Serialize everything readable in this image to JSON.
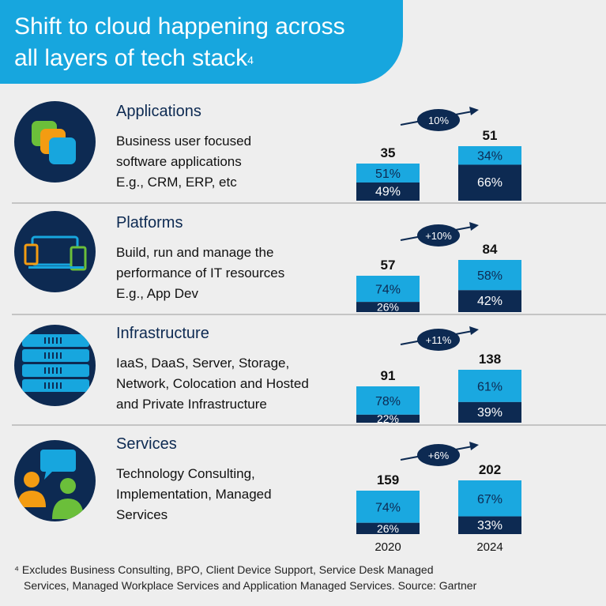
{
  "header": {
    "title_line1": "Shift to cloud happening across",
    "title_line2": "all layers of tech stack",
    "title_sup": "4"
  },
  "colors": {
    "accent": "#17a6de",
    "navy": "#0d2a52",
    "light_bar": "#1aa8e0",
    "dark_bar": "#0d2a52"
  },
  "categories": [
    {
      "title": "Applications",
      "desc": [
        "Business user focused",
        "software applications",
        "E.g., CRM, ERP, etc"
      ],
      "icon": "app-windows-icon"
    },
    {
      "title": "Platforms",
      "desc": [
        "Build, run and manage the",
        "performance of IT resources",
        "E.g., App Dev"
      ],
      "icon": "devices-icon"
    },
    {
      "title": "Infrastructure",
      "desc": [
        "IaaS, DaaS, Server, Storage,",
        "Network, Colocation and Hosted",
        "and Private Infrastructure"
      ],
      "icon": "server-rack-icon"
    },
    {
      "title": "Services",
      "desc": [
        "Technology Consulting,",
        "Implementation, Managed",
        "Services"
      ],
      "icon": "people-chat-icon"
    }
  ],
  "chart_data": {
    "type": "bar",
    "categories": [
      "2020",
      "2024"
    ],
    "groups": [
      {
        "name": "Applications",
        "totals": [
          35,
          51
        ],
        "growth": "10%",
        "light_pct": [
          "51%",
          "34%"
        ],
        "dark_pct": [
          "49%",
          "66%"
        ]
      },
      {
        "name": "Platforms",
        "totals": [
          57,
          84
        ],
        "growth": "+10%",
        "light_pct": [
          "74%",
          "58%"
        ],
        "dark_pct": [
          "26%",
          "42%"
        ]
      },
      {
        "name": "Infrastructure",
        "totals": [
          91,
          138
        ],
        "growth": "+11%",
        "light_pct": [
          "78%",
          "61%"
        ],
        "dark_pct": [
          "22%",
          "39%"
        ]
      },
      {
        "name": "Services",
        "totals": [
          159,
          202
        ],
        "growth": "+6%",
        "light_pct": [
          "74%",
          "67%"
        ],
        "dark_pct": [
          "26%",
          "33%"
        ]
      }
    ]
  },
  "footnote": {
    "line1": "⁴ Excludes Business Consulting, BPO, Client Device Support, Service Desk Managed",
    "line2": "Services, Managed Workplace Services and Application Managed Services. Source: Gartner"
  }
}
